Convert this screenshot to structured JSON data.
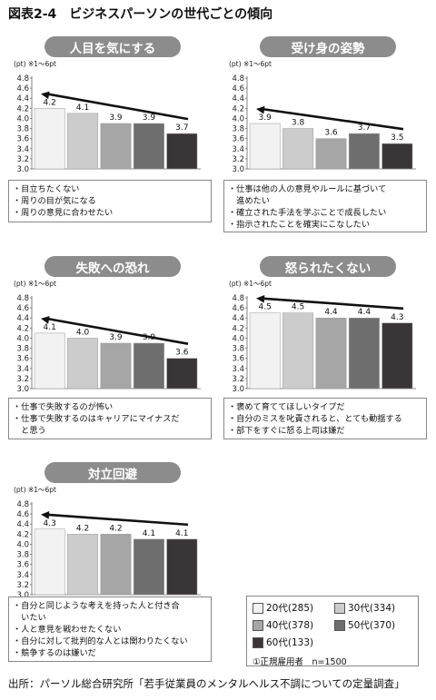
{
  "figure_title": "図表2-4　ビジネスパーソンの世代ごとの傾向",
  "source": "出所：パーソル総合研究所「若手従業員のメンタルヘルス不調についての定量調査」",
  "legend": {
    "items": [
      {
        "label": "20代(285)",
        "color": "#f2f2f2"
      },
      {
        "label": "30代(334)",
        "color": "#cccccc"
      },
      {
        "label": "40代(378)",
        "color": "#a6a6a6"
      },
      {
        "label": "50代(370)",
        "color": "#6e6e6e"
      },
      {
        "label": "60代(133)",
        "color": "#3a3536"
      }
    ],
    "note": "①正規雇用者　n=1500"
  },
  "chart_data": [
    {
      "type": "bar",
      "title": "人目を気にする",
      "ylabel": "(pt) ※1〜6pt",
      "categories": [
        "20代",
        "30代",
        "40代",
        "50代",
        "60代"
      ],
      "values": [
        4.2,
        4.1,
        3.9,
        3.9,
        3.7
      ],
      "ylim": [
        3.0,
        4.8
      ],
      "yticks": [
        "4.8",
        "4.6",
        "4.4",
        "4.2",
        "4.0",
        "3.8",
        "3.6",
        "3.4",
        "3.2",
        "3.0"
      ],
      "notes": [
        "・目立ちたくない",
        "・周りの目が気になる",
        "・周りの意見に合わせたい"
      ]
    },
    {
      "type": "bar",
      "title": "受け身の姿勢",
      "ylabel": "(pt) ※1〜6pt",
      "categories": [
        "20代",
        "30代",
        "40代",
        "50代",
        "60代"
      ],
      "values": [
        3.9,
        3.8,
        3.6,
        3.7,
        3.5
      ],
      "ylim": [
        3.0,
        4.8
      ],
      "yticks": [
        "4.8",
        "4.6",
        "4.4",
        "4.2",
        "4.0",
        "3.8",
        "3.6",
        "3.4",
        "3.2",
        "3.0"
      ],
      "notes": [
        "・仕事は他の人の意見やルールに基づいて",
        "　進めたい",
        "・確立された手法を学ぶことで成長したい",
        "・指示されたことを確実にこなしたい"
      ]
    },
    {
      "type": "bar",
      "title": "失敗への恐れ",
      "ylabel": "(pt) ※1〜6pt",
      "categories": [
        "20代",
        "30代",
        "40代",
        "50代",
        "60代"
      ],
      "values": [
        4.1,
        4.0,
        3.9,
        3.9,
        3.6
      ],
      "ylim": [
        3.0,
        4.8
      ],
      "yticks": [
        "4.8",
        "4.6",
        "4.4",
        "4.2",
        "4.0",
        "3.8",
        "3.6",
        "3.4",
        "3.2",
        "3.0"
      ],
      "notes": [
        "・仕事で失敗するのが怖い",
        "・仕事で失敗するのはキャリアにマイナスだ",
        "　と思う"
      ]
    },
    {
      "type": "bar",
      "title": "怒られたくない",
      "ylabel": "(pt) ※1〜6pt",
      "categories": [
        "20代",
        "30代",
        "40代",
        "50代",
        "60代"
      ],
      "values": [
        4.5,
        4.5,
        4.4,
        4.4,
        4.3
      ],
      "ylim": [
        3.0,
        4.8
      ],
      "yticks": [
        "4.8",
        "4.6",
        "4.4",
        "4.2",
        "4.0",
        "3.8",
        "3.6",
        "3.4",
        "3.2",
        "3.0"
      ],
      "notes": [
        "・褒めて育ててほしいタイプだ",
        "・自分のミスを叱責されると、とても動揺する",
        "・部下をすぐに怒る上司は嫌だ"
      ]
    },
    {
      "type": "bar",
      "title": "対立回避",
      "ylabel": "(pt) ※1〜6pt",
      "categories": [
        "20代",
        "30代",
        "40代",
        "50代",
        "60代"
      ],
      "values": [
        4.3,
        4.2,
        4.2,
        4.1,
        4.1
      ],
      "ylim": [
        3.0,
        4.8
      ],
      "yticks": [
        "4.8",
        "4.6",
        "4.4",
        "4.2",
        "4.0",
        "3.8",
        "3.6",
        "3.4",
        "3.2",
        "3.0"
      ],
      "notes": [
        "・自分と同じような考えを持った人と付き合",
        "　いたい",
        "・人と意見を戦わせたくない",
        "・自分に対して批判的な人とは関わりたくない",
        "・競争するのは嫌いだ"
      ]
    }
  ]
}
